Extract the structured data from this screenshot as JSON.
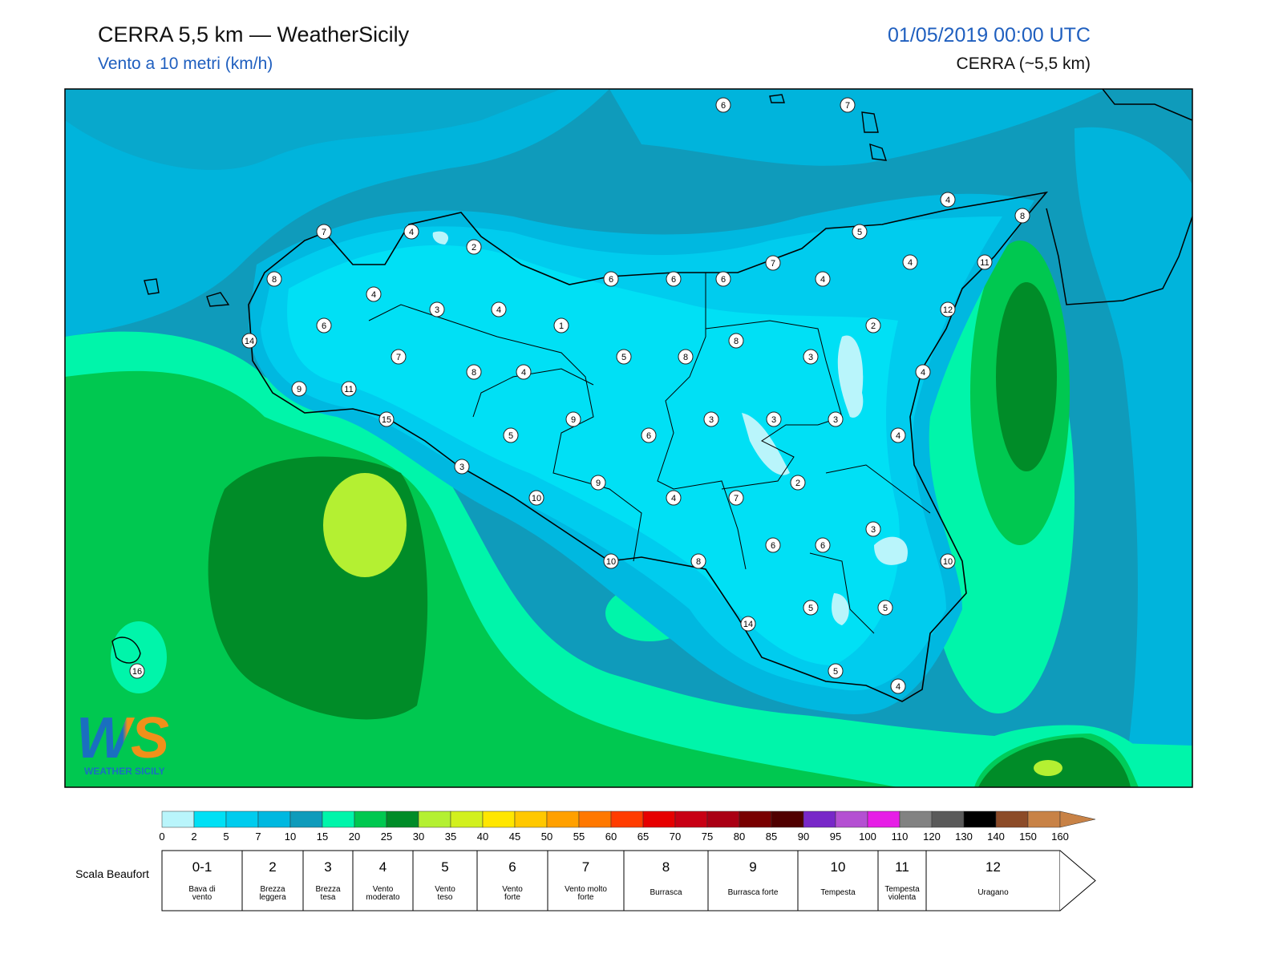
{
  "header": {
    "title": "CERRA 5,5 km — WeatherSicily",
    "subtitle": "Vento a 10 metri (km/h)",
    "date": "01/05/2019 00:00 UTC",
    "model": "CERRA (~5,5 km)"
  },
  "stations": [
    6,
    7,
    4,
    8,
    7,
    4,
    2,
    5,
    7,
    4,
    11,
    8,
    6,
    6,
    6,
    4,
    4,
    3,
    4,
    12,
    6,
    1,
    2,
    8,
    14,
    7,
    5,
    8,
    3,
    8,
    4,
    4,
    9,
    11,
    15,
    9,
    3,
    3,
    3,
    5,
    6,
    4,
    3,
    9,
    2,
    10,
    4,
    7,
    3,
    6,
    6,
    10,
    8,
    10,
    5,
    5,
    14,
    5,
    4,
    16
  ],
  "colorbar": {
    "ticks": [
      0,
      2,
      5,
      7,
      10,
      15,
      20,
      25,
      30,
      35,
      40,
      45,
      50,
      55,
      60,
      65,
      70,
      75,
      80,
      85,
      90,
      95,
      100,
      110,
      120,
      130,
      140,
      150,
      160
    ],
    "colors": [
      "#b9f5fb",
      "#00e0f5",
      "#00ccee",
      "#00b8e0",
      "#0f9bbb",
      "#00f5aa",
      "#00c850",
      "#008c28",
      "#b4f032",
      "#d2f01e",
      "#ffe600",
      "#ffc800",
      "#ffa000",
      "#ff7800",
      "#ff3c00",
      "#e60000",
      "#c80014",
      "#aa0014",
      "#780000",
      "#500000",
      "#7828c8",
      "#b450d2",
      "#e61ee6",
      "#828282",
      "#5a5a5a",
      "#000000",
      "#8c4b28",
      "#c88246"
    ],
    "extend_color": "#c88246"
  },
  "beaufort": {
    "title": "Scala Beaufort",
    "classes": [
      {
        "force": "0-1",
        "label": "Bava di vento"
      },
      {
        "force": 2,
        "label": "Brezza leggera"
      },
      {
        "force": 3,
        "label": "Brezza tesa"
      },
      {
        "force": 4,
        "label": "Vento moderato"
      },
      {
        "force": 5,
        "label": "Vento teso"
      },
      {
        "force": 6,
        "label": "Vento forte"
      },
      {
        "force": 7,
        "label": "Vento molto forte"
      },
      {
        "force": 8,
        "label": "Burrasca"
      },
      {
        "force": 9,
        "label": "Burrasca forte"
      },
      {
        "force": 10,
        "label": "Tempesta"
      },
      {
        "force": 11,
        "label": "Tempesta violenta"
      },
      {
        "force": 12,
        "label": "Uragano"
      }
    ]
  },
  "logo": {
    "mark": "WS",
    "text": "WEATHER SICILY"
  }
}
